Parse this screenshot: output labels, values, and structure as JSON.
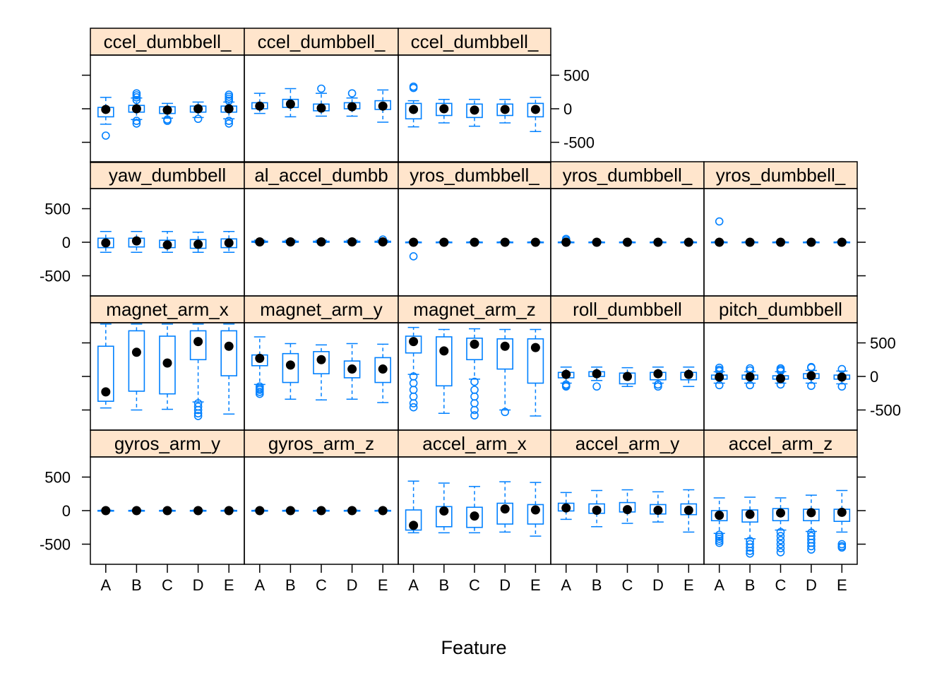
{
  "chart_data": {
    "type": "box",
    "xlabel": "Feature",
    "categories": [
      "A",
      "B",
      "C",
      "D",
      "E"
    ],
    "ylim": [
      -800,
      800
    ],
    "y_ticks": [
      -500,
      0,
      500
    ],
    "colors": {
      "box": "#0080ff",
      "median_dot": "#000000",
      "strip_bg": "#ffe5cc"
    },
    "layout": {
      "columns": 5,
      "rows": 4
    },
    "panels": [
      {
        "label": "gyros_arm_y",
        "row": 0,
        "col": 0,
        "boxes": [
          {
            "q1": -3,
            "med": 0,
            "q3": 3,
            "lo": -8,
            "hi": 8,
            "out": []
          },
          {
            "q1": -3,
            "med": 0,
            "q3": 3,
            "lo": -8,
            "hi": 8,
            "out": []
          },
          {
            "q1": -3,
            "med": 0,
            "q3": 3,
            "lo": -8,
            "hi": 8,
            "out": []
          },
          {
            "q1": -3,
            "med": 0,
            "q3": 3,
            "lo": -8,
            "hi": 8,
            "out": []
          },
          {
            "q1": -3,
            "med": 0,
            "q3": 3,
            "lo": -8,
            "hi": 8,
            "out": []
          }
        ]
      },
      {
        "label": "gyros_arm_z",
        "row": 0,
        "col": 1,
        "boxes": [
          {
            "q1": -3,
            "med": 0,
            "q3": 3,
            "lo": -8,
            "hi": 8,
            "out": []
          },
          {
            "q1": -3,
            "med": 0,
            "q3": 3,
            "lo": -8,
            "hi": 8,
            "out": []
          },
          {
            "q1": -3,
            "med": 0,
            "q3": 3,
            "lo": -8,
            "hi": 8,
            "out": []
          },
          {
            "q1": -3,
            "med": 0,
            "q3": 3,
            "lo": -8,
            "hi": 8,
            "out": []
          },
          {
            "q1": -3,
            "med": 0,
            "q3": 3,
            "lo": -8,
            "hi": 8,
            "out": []
          }
        ]
      },
      {
        "label": "accel_arm_x",
        "row": 0,
        "col": 2,
        "boxes": [
          {
            "q1": -290,
            "med": -220,
            "q3": 10,
            "lo": -330,
            "hi": 440,
            "out": []
          },
          {
            "q1": -240,
            "med": -5,
            "q3": 60,
            "lo": -330,
            "hi": 410,
            "out": []
          },
          {
            "q1": -250,
            "med": -80,
            "q3": 50,
            "lo": -330,
            "hi": 360,
            "out": []
          },
          {
            "q1": -200,
            "med": 25,
            "q3": 110,
            "lo": -320,
            "hi": 430,
            "out": []
          },
          {
            "q1": -200,
            "med": 10,
            "q3": 90,
            "lo": -380,
            "hi": 420,
            "out": []
          }
        ]
      },
      {
        "label": "accel_arm_y",
        "row": 0,
        "col": 3,
        "boxes": [
          {
            "q1": -5,
            "med": 40,
            "q3": 110,
            "lo": -130,
            "hi": 270,
            "out": []
          },
          {
            "q1": -40,
            "med": 5,
            "q3": 100,
            "lo": -240,
            "hi": 300,
            "out": []
          },
          {
            "q1": -20,
            "med": 15,
            "q3": 120,
            "lo": -190,
            "hi": 310,
            "out": []
          },
          {
            "q1": -50,
            "med": 5,
            "q3": 90,
            "lo": -170,
            "hi": 280,
            "out": []
          },
          {
            "q1": -60,
            "med": 5,
            "q3": 100,
            "lo": -320,
            "hi": 310,
            "out": []
          }
        ]
      },
      {
        "label": "accel_arm_z",
        "row": 0,
        "col": 4,
        "boxes": [
          {
            "q1": -150,
            "med": -70,
            "q3": 0,
            "lo": -340,
            "hi": 190,
            "out": [
              -360,
              -390,
              -420,
              -450,
              -480
            ]
          },
          {
            "q1": -170,
            "med": -55,
            "q3": 10,
            "lo": -420,
            "hi": 200,
            "out": [
              -450,
              -500,
              -550,
              -600,
              -640
            ]
          },
          {
            "q1": -150,
            "med": -35,
            "q3": 30,
            "lo": -290,
            "hi": 190,
            "out": [
              -320,
              -380,
              -440,
              -500,
              -560,
              -620
            ]
          },
          {
            "q1": -150,
            "med": -30,
            "q3": 20,
            "lo": -310,
            "hi": 230,
            "out": [
              -330,
              -380,
              -430,
              -480,
              -530,
              -580
            ]
          },
          {
            "q1": -160,
            "med": -25,
            "q3": 20,
            "lo": -320,
            "hi": 300,
            "out": [
              -500,
              -530,
              -550
            ]
          }
        ]
      },
      {
        "label": "magnet_arm_x",
        "row": 1,
        "col": 0,
        "boxes": [
          {
            "q1": -370,
            "med": -230,
            "q3": 450,
            "lo": -470,
            "hi": 780,
            "out": []
          },
          {
            "q1": -220,
            "med": 360,
            "q3": 680,
            "lo": -500,
            "hi": 780,
            "out": []
          },
          {
            "q1": -260,
            "med": 200,
            "q3": 600,
            "lo": -490,
            "hi": 780,
            "out": []
          },
          {
            "q1": 250,
            "med": 520,
            "q3": 680,
            "lo": -380,
            "hi": 780,
            "out": [
              -400,
              -450,
              -500,
              -550,
              -590
            ]
          },
          {
            "q1": 10,
            "med": 450,
            "q3": 680,
            "lo": -560,
            "hi": 780,
            "out": []
          }
        ]
      },
      {
        "label": "magnet_arm_y",
        "row": 1,
        "col": 1,
        "boxes": [
          {
            "q1": 160,
            "med": 270,
            "q3": 320,
            "lo": -120,
            "hi": 590,
            "out": [
              -150,
              -180,
              -200,
              -230,
              -260
            ]
          },
          {
            "q1": -90,
            "med": 170,
            "q3": 340,
            "lo": -340,
            "hi": 490,
            "out": []
          },
          {
            "q1": 40,
            "med": 250,
            "q3": 370,
            "lo": -350,
            "hi": 470,
            "out": []
          },
          {
            "q1": -20,
            "med": 110,
            "q3": 230,
            "lo": -340,
            "hi": 490,
            "out": []
          },
          {
            "q1": -90,
            "med": 110,
            "q3": 280,
            "lo": -390,
            "hi": 480,
            "out": []
          }
        ]
      },
      {
        "label": "magnet_arm_z",
        "row": 1,
        "col": 2,
        "boxes": [
          {
            "q1": 350,
            "med": 520,
            "q3": 600,
            "lo": 30,
            "hi": 730,
            "out": [
              0,
              -100,
              -200,
              -300,
              -400,
              -460
            ]
          },
          {
            "q1": -140,
            "med": 380,
            "q3": 590,
            "lo": -550,
            "hi": 700,
            "out": []
          },
          {
            "q1": 250,
            "med": 480,
            "q3": 570,
            "lo": -40,
            "hi": 710,
            "out": [
              -80,
              -200,
              -300,
              -400,
              -500,
              -580
            ]
          },
          {
            "q1": 110,
            "med": 450,
            "q3": 560,
            "lo": -500,
            "hi": 700,
            "out": [
              -530
            ]
          },
          {
            "q1": -100,
            "med": 430,
            "q3": 560,
            "lo": -590,
            "hi": 700,
            "out": []
          }
        ]
      },
      {
        "label": "roll_dumbbell",
        "row": 1,
        "col": 3,
        "boxes": [
          {
            "q1": -20,
            "med": 30,
            "q3": 60,
            "lo": -100,
            "hi": 140,
            "out": [
              -120,
              -140,
              -150
            ]
          },
          {
            "q1": 0,
            "med": 40,
            "q3": 70,
            "lo": -60,
            "hi": 140,
            "out": [
              -150
            ]
          },
          {
            "q1": -110,
            "med": 0,
            "q3": 50,
            "lo": -150,
            "hi": 130,
            "out": []
          },
          {
            "q1": -50,
            "med": 40,
            "q3": 60,
            "lo": -100,
            "hi": 140,
            "out": [
              -120,
              -150
            ]
          },
          {
            "q1": -50,
            "med": 30,
            "q3": 60,
            "lo": -150,
            "hi": 140,
            "out": []
          }
        ]
      },
      {
        "label": "pitch_dumbbell",
        "row": 1,
        "col": 4,
        "boxes": [
          {
            "q1": -40,
            "med": -10,
            "q3": 20,
            "lo": -100,
            "hi": 70,
            "out": [
              -130,
              80,
              100,
              130
            ]
          },
          {
            "q1": -40,
            "med": -5,
            "q3": 20,
            "lo": -100,
            "hi": 70,
            "out": [
              -130,
              90,
              120
            ]
          },
          {
            "q1": -40,
            "med": -30,
            "q3": 10,
            "lo": -100,
            "hi": 70,
            "out": [
              -120,
              80,
              100,
              120
            ]
          },
          {
            "q1": -30,
            "med": 10,
            "q3": 40,
            "lo": -100,
            "hi": 90,
            "out": [
              -140,
              130,
              140
            ]
          },
          {
            "q1": -40,
            "med": -10,
            "q3": 20,
            "lo": -110,
            "hi": 80,
            "out": [
              -150,
              110
            ]
          }
        ]
      },
      {
        "label": "yaw_dumbbell",
        "row": 2,
        "col": 0,
        "boxes": [
          {
            "q1": -80,
            "med": -10,
            "q3": 60,
            "lo": -150,
            "hi": 160,
            "out": []
          },
          {
            "q1": -70,
            "med": 20,
            "q3": 60,
            "lo": -150,
            "hi": 160,
            "out": []
          },
          {
            "q1": -80,
            "med": -40,
            "q3": 30,
            "lo": -150,
            "hi": 160,
            "out": []
          },
          {
            "q1": -90,
            "med": -30,
            "q3": 40,
            "lo": -150,
            "hi": 150,
            "out": []
          },
          {
            "q1": -80,
            "med": -10,
            "q3": 50,
            "lo": -150,
            "hi": 160,
            "out": []
          }
        ]
      },
      {
        "label": "al_accel_dumbb",
        "row": 2,
        "col": 1,
        "boxes": [
          {
            "q1": 0,
            "med": 5,
            "q3": 15,
            "lo": -5,
            "hi": 30,
            "out": []
          },
          {
            "q1": 0,
            "med": 5,
            "q3": 15,
            "lo": -5,
            "hi": 30,
            "out": []
          },
          {
            "q1": 0,
            "med": 5,
            "q3": 15,
            "lo": -5,
            "hi": 30,
            "out": []
          },
          {
            "q1": 0,
            "med": 5,
            "q3": 15,
            "lo": -5,
            "hi": 30,
            "out": []
          },
          {
            "q1": 0,
            "med": 5,
            "q3": 15,
            "lo": -5,
            "hi": 30,
            "out": [
              40
            ]
          }
        ]
      },
      {
        "label": "yros_dumbbell_",
        "row": 2,
        "col": 2,
        "boxes": [
          {
            "q1": -3,
            "med": 0,
            "q3": 3,
            "lo": -8,
            "hi": 8,
            "out": [
              -210
            ]
          },
          {
            "q1": -3,
            "med": 0,
            "q3": 3,
            "lo": -8,
            "hi": 8,
            "out": []
          },
          {
            "q1": -3,
            "med": 0,
            "q3": 3,
            "lo": -8,
            "hi": 8,
            "out": []
          },
          {
            "q1": -3,
            "med": 0,
            "q3": 3,
            "lo": -8,
            "hi": 8,
            "out": []
          },
          {
            "q1": -3,
            "med": 0,
            "q3": 3,
            "lo": -8,
            "hi": 8,
            "out": []
          }
        ]
      },
      {
        "label": "yros_dumbbell_",
        "row": 2,
        "col": 3,
        "boxes": [
          {
            "q1": -3,
            "med": 0,
            "q3": 3,
            "lo": -8,
            "hi": 8,
            "out": [
              30,
              50
            ]
          },
          {
            "q1": -3,
            "med": 0,
            "q3": 3,
            "lo": -8,
            "hi": 8,
            "out": []
          },
          {
            "q1": -3,
            "med": 0,
            "q3": 3,
            "lo": -8,
            "hi": 8,
            "out": []
          },
          {
            "q1": -3,
            "med": 0,
            "q3": 3,
            "lo": -8,
            "hi": 8,
            "out": []
          },
          {
            "q1": -3,
            "med": 0,
            "q3": 3,
            "lo": -8,
            "hi": 8,
            "out": []
          }
        ]
      },
      {
        "label": "yros_dumbbell_",
        "row": 2,
        "col": 4,
        "boxes": [
          {
            "q1": -3,
            "med": 0,
            "q3": 3,
            "lo": -8,
            "hi": 8,
            "out": [
              310
            ]
          },
          {
            "q1": -3,
            "med": 0,
            "q3": 3,
            "lo": -8,
            "hi": 8,
            "out": []
          },
          {
            "q1": -3,
            "med": 0,
            "q3": 3,
            "lo": -8,
            "hi": 8,
            "out": []
          },
          {
            "q1": -3,
            "med": 0,
            "q3": 3,
            "lo": -8,
            "hi": 8,
            "out": []
          },
          {
            "q1": -3,
            "med": 0,
            "q3": 3,
            "lo": -8,
            "hi": 8,
            "out": []
          }
        ]
      },
      {
        "label": "ccel_dumbbell_",
        "row": 3,
        "col": 0,
        "boxes": [
          {
            "q1": -120,
            "med": -10,
            "q3": 20,
            "lo": -230,
            "hi": 170,
            "out": [
              -400
            ]
          },
          {
            "q1": -50,
            "med": 0,
            "q3": 50,
            "lo": -160,
            "hi": 160,
            "out": [
              -180,
              -220,
              130,
              170,
              200,
              230
            ]
          },
          {
            "q1": -70,
            "med": -20,
            "q3": 30,
            "lo": -140,
            "hi": 80,
            "out": [
              -160,
              -180
            ]
          },
          {
            "q1": -50,
            "med": 0,
            "q3": 40,
            "lo": -130,
            "hi": 100,
            "out": [
              -150
            ]
          },
          {
            "q1": -50,
            "med": 0,
            "q3": 40,
            "lo": -150,
            "hi": 100,
            "out": [
              -180,
              -220,
              120,
              150,
              180,
              210
            ]
          }
        ]
      },
      {
        "label": "ccel_dumbbell_",
        "row": 3,
        "col": 1,
        "boxes": [
          {
            "q1": 0,
            "med": 40,
            "q3": 90,
            "lo": -70,
            "hi": 230,
            "out": []
          },
          {
            "q1": 20,
            "med": 70,
            "q3": 140,
            "lo": -120,
            "hi": 300,
            "out": []
          },
          {
            "q1": -30,
            "med": 10,
            "q3": 70,
            "lo": -110,
            "hi": 230,
            "out": [
              300
            ]
          },
          {
            "q1": 0,
            "med": 30,
            "q3": 90,
            "lo": -110,
            "hi": 160,
            "out": [
              230
            ]
          },
          {
            "q1": -10,
            "med": 40,
            "q3": 120,
            "lo": -200,
            "hi": 280,
            "out": []
          }
        ]
      },
      {
        "label": "ccel_dumbbell_",
        "row": 3,
        "col": 2,
        "boxes": [
          {
            "q1": -150,
            "med": -10,
            "q3": 80,
            "lo": -270,
            "hi": 120,
            "out": [
              310,
              330
            ]
          },
          {
            "q1": -100,
            "med": 0,
            "q3": 80,
            "lo": -210,
            "hi": 140,
            "out": []
          },
          {
            "q1": -130,
            "med": -20,
            "q3": 70,
            "lo": -260,
            "hi": 140,
            "out": []
          },
          {
            "q1": -100,
            "med": -10,
            "q3": 70,
            "lo": -210,
            "hi": 140,
            "out": []
          },
          {
            "q1": -120,
            "med": -10,
            "q3": 80,
            "lo": -340,
            "hi": 170,
            "out": []
          }
        ]
      }
    ]
  }
}
